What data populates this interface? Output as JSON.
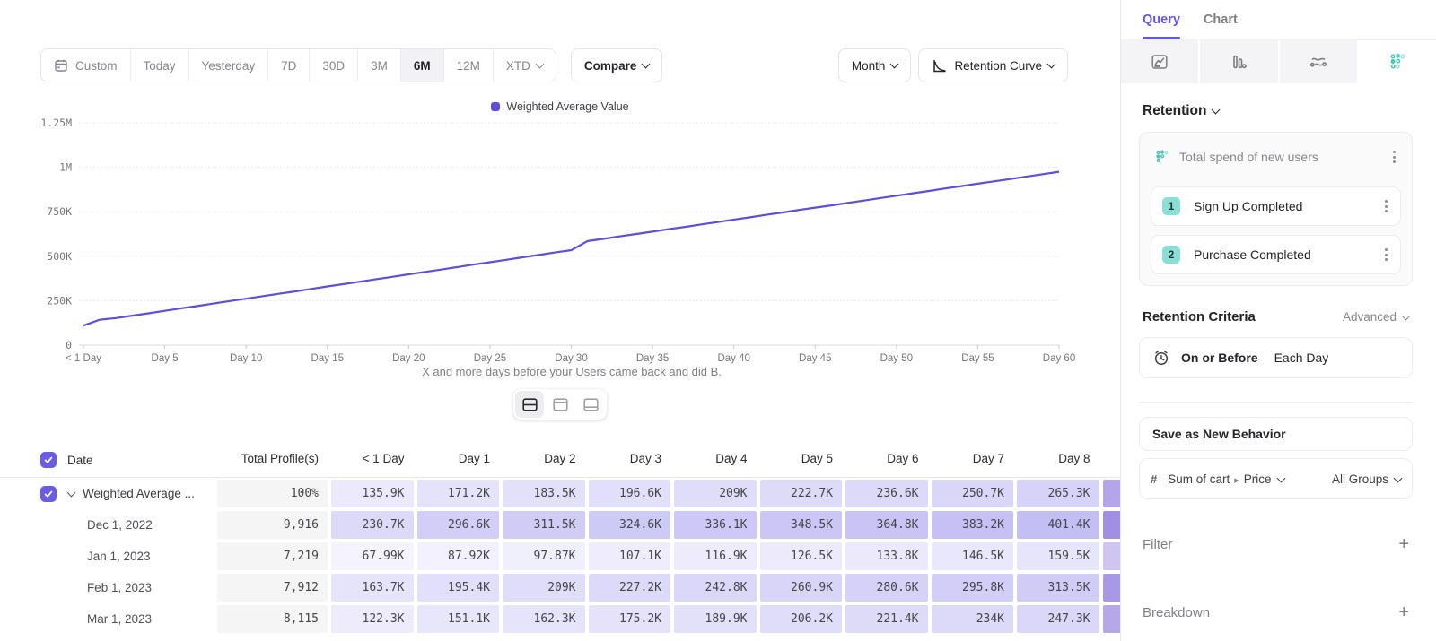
{
  "toolbar": {
    "ranges": [
      {
        "label": "Custom",
        "icon": "calendar-icon",
        "active": false
      },
      {
        "label": "Today",
        "active": false
      },
      {
        "label": "Yesterday",
        "active": false
      },
      {
        "label": "7D",
        "active": false
      },
      {
        "label": "30D",
        "active": false
      },
      {
        "label": "3M",
        "active": false
      },
      {
        "label": "6M",
        "active": true
      },
      {
        "label": "12M",
        "active": false
      },
      {
        "label": "XTD",
        "active": false,
        "dropdown": true
      }
    ],
    "compare_label": "Compare",
    "granularity_label": "Month",
    "chart_type_label": "Retention Curve"
  },
  "chart": {
    "legend_label": "Weighted Average Value",
    "series_color": "#5c4fdb",
    "y_ticks": [
      "1.25M",
      "1M",
      "750K",
      "500K",
      "250K",
      "0"
    ],
    "x_ticks": [
      "< 1 Day",
      "Day 5",
      "Day 10",
      "Day 15",
      "Day 20",
      "Day 25",
      "Day 30",
      "Day 35",
      "Day 40",
      "Day 45",
      "Day 50",
      "Day 55",
      "Day 60"
    ],
    "caption": "X and more days before your Users came back and did B."
  },
  "chart_data": {
    "type": "line",
    "series_name": "Weighted Average Value",
    "xlabel": "X and more days before your Users came back and did B.",
    "x_range_days": [
      0,
      60
    ],
    "ylim": [
      0,
      1250000
    ],
    "y_tick_values_k": [
      0,
      250,
      500,
      750,
      1000,
      1250
    ],
    "values_k": [
      110,
      143,
      152,
      166,
      179,
      193,
      207,
      220,
      234,
      248,
      261,
      275,
      289,
      302,
      316,
      330,
      343,
      357,
      371,
      384,
      398,
      412,
      425,
      439,
      453,
      466,
      480,
      494,
      507,
      521,
      534,
      585,
      598,
      612,
      625,
      638,
      652,
      665,
      679,
      692,
      706,
      719,
      733,
      746,
      760,
      773,
      786,
      800,
      813,
      827,
      840,
      854,
      867,
      881,
      894,
      908,
      921,
      934,
      948,
      961,
      975
    ]
  },
  "table": {
    "columns": [
      "Date",
      "Total Profile(s)",
      "< 1 Day",
      "Day 1",
      "Day 2",
      "Day 3",
      "Day 4",
      "Day 5",
      "Day 6",
      "Day 7",
      "Day 8"
    ],
    "rows": [
      {
        "label": "Weighted Average ...",
        "checked": true,
        "expandable": true,
        "total": "100%",
        "values": [
          "135.9K",
          "171.2K",
          "183.5K",
          "196.6K",
          "209K",
          "222.7K",
          "236.6K",
          "250.7K",
          "265.3K"
        ],
        "day9_shade": "#b2a6e9"
      },
      {
        "label": "Dec 1, 2022",
        "total": "9,916",
        "values": [
          "230.7K",
          "296.6K",
          "311.5K",
          "324.6K",
          "336.1K",
          "348.5K",
          "364.8K",
          "383.2K",
          "401.4K"
        ],
        "day9_shade": "#a090e3"
      },
      {
        "label": "Jan 1, 2023",
        "total": "7,219",
        "values": [
          "67.99K",
          "87.92K",
          "97.87K",
          "107.1K",
          "116.9K",
          "126.5K",
          "133.8K",
          "146.5K",
          "159.5K"
        ],
        "day9_shade": "#cec5f2"
      },
      {
        "label": "Feb 1, 2023",
        "total": "7,912",
        "values": [
          "163.7K",
          "195.4K",
          "209K",
          "227.2K",
          "242.8K",
          "260.9K",
          "280.6K",
          "295.8K",
          "313.5K"
        ],
        "day9_shade": "#a899e6"
      },
      {
        "label": "Mar 1, 2023",
        "total": "8,115",
        "values": [
          "122.3K",
          "151.1K",
          "162.3K",
          "175.2K",
          "189.9K",
          "206.2K",
          "221.4K",
          "234K",
          "247.3K"
        ],
        "day9_shade": "#b4a8e9"
      }
    ]
  },
  "sidebar": {
    "tabs": [
      {
        "label": "Query",
        "active": true
      },
      {
        "label": "Chart",
        "active": false
      }
    ],
    "report_icons": [
      "insights-icon",
      "funnels-icon",
      "flows-icon",
      "retention-icon"
    ],
    "section_label": "Retention",
    "behavior": {
      "title": "Total spend of new users",
      "steps": [
        {
          "num": "1",
          "label": "Sign Up Completed"
        },
        {
          "num": "2",
          "label": "Purchase Completed"
        }
      ]
    },
    "criteria": {
      "label": "Retention Criteria",
      "mode": "Advanced",
      "timing_bold": "On or Before",
      "timing": "Each Day"
    },
    "save_button": "Save as New Behavior",
    "measure": {
      "prefix": "#",
      "property": "Sum of cart",
      "sub": "Price",
      "groups": "All Groups"
    },
    "filter_label": "Filter",
    "breakdown_label": "Breakdown"
  },
  "colors": {
    "accent_purple": "#6355e8",
    "line_purple": "#5c4fdb",
    "checkbox_purple": "#6a5ce6",
    "teal": "#49c5b6",
    "badge_teal": "#8adfd4",
    "cell_base": "rgba(98,83,226,1)",
    "gray_text": "#85868c"
  }
}
